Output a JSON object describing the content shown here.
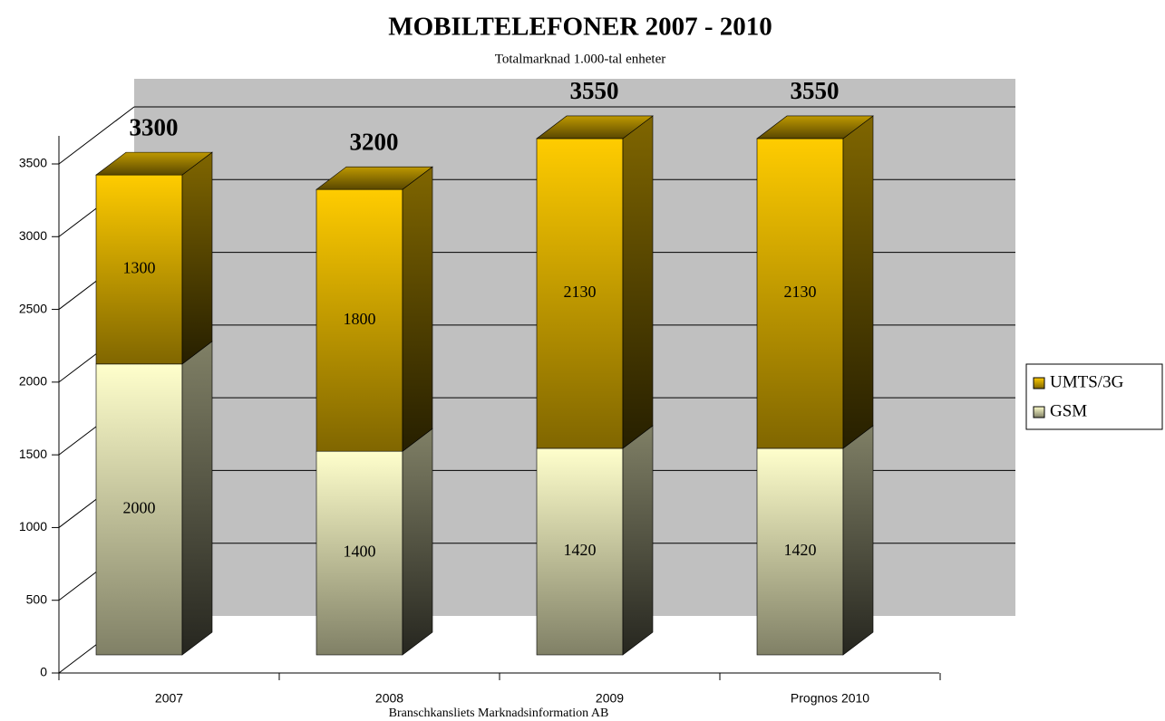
{
  "chart_data": {
    "type": "bar",
    "stacked": true,
    "title": "MOBILTELEFONER  2007 - 2010",
    "subtitle": "Totalmarknad 1.000-tal enheter",
    "source": "Branschkansliets Marknadsinformation AB",
    "categories": [
      "2007",
      "2008",
      "2009",
      "Prognos 2010"
    ],
    "series": [
      {
        "name": "GSM",
        "color": "#ffffcc",
        "values": [
          2000,
          1400,
          1420,
          1420
        ]
      },
      {
        "name": "UMTS/3G",
        "color": "#ffcc00",
        "values": [
          1300,
          1800,
          2130,
          2130
        ]
      }
    ],
    "totals": [
      3300,
      3200,
      3550,
      3550
    ],
    "ylim": [
      0,
      3500
    ],
    "yticks": [
      0,
      500,
      1000,
      1500,
      2000,
      2500,
      3000,
      3500
    ],
    "grid": true,
    "legend": "right"
  }
}
